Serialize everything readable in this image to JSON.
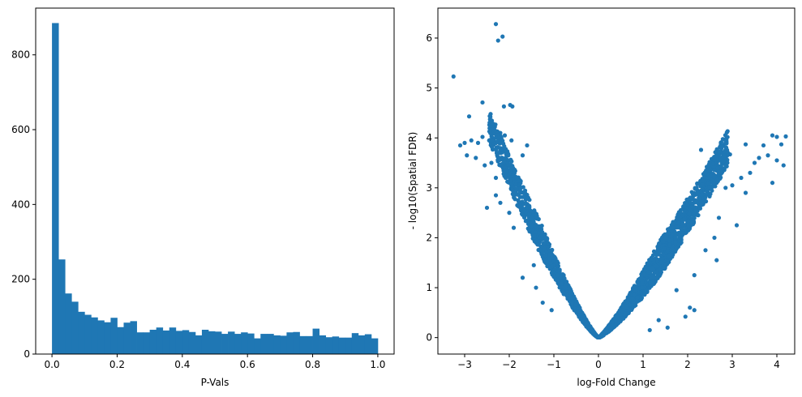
{
  "chart_data": [
    {
      "type": "bar",
      "subtype": "histogram",
      "xlabel": "P-Vals",
      "ylabel": "",
      "xlim": [
        -0.05,
        1.05
      ],
      "ylim": [
        0,
        925
      ],
      "xticks": [
        0.0,
        0.2,
        0.4,
        0.6,
        0.8,
        1.0
      ],
      "xtick_labels": [
        "0.0",
        "0.2",
        "0.4",
        "0.6",
        "0.8",
        "1.0"
      ],
      "yticks": [
        0,
        200,
        400,
        600,
        800
      ],
      "ytick_labels": [
        "0",
        "200",
        "400",
        "600",
        "800"
      ],
      "bin_start": 0.0,
      "bin_width": 0.02,
      "values": [
        885,
        253,
        162,
        140,
        113,
        105,
        98,
        90,
        85,
        97,
        72,
        84,
        88,
        58,
        58,
        65,
        71,
        63,
        71,
        62,
        64,
        59,
        50,
        65,
        61,
        60,
        54,
        60,
        54,
        58,
        55,
        42,
        54,
        54,
        50,
        49,
        58,
        59,
        48,
        48,
        68,
        50,
        45,
        47,
        44,
        44,
        56,
        50,
        53,
        42
      ],
      "color": "#1f77b4"
    },
    {
      "type": "scatter",
      "xlabel": "log-Fold Change",
      "ylabel": "- log10(Spatial FDR)",
      "xlim": [
        -3.6,
        4.4
      ],
      "ylim": [
        -0.33,
        6.6
      ],
      "xticks": [
        -3,
        -2,
        -1,
        0,
        1,
        2,
        3,
        4
      ],
      "xtick_labels": [
        "−3",
        "−2",
        "−1",
        "0",
        "1",
        "2",
        "3",
        "4"
      ],
      "yticks": [
        0,
        1,
        2,
        3,
        4,
        5,
        6
      ],
      "ytick_labels": [
        "0",
        "1",
        "2",
        "3",
        "4",
        "5",
        "6"
      ],
      "color": "#1f77b4",
      "points": [
        [
          -3.25,
          5.23
        ],
        [
          -2.3,
          6.28
        ],
        [
          -2.25,
          5.95
        ],
        [
          -2.15,
          6.03
        ],
        [
          -2.9,
          4.43
        ],
        [
          -2.6,
          4.71
        ],
        [
          -2.12,
          4.63
        ],
        [
          -1.98,
          4.66
        ],
        [
          -1.93,
          4.63
        ],
        [
          -3.1,
          3.85
        ],
        [
          -3.0,
          3.9
        ],
        [
          -2.85,
          3.95
        ],
        [
          -2.7,
          3.9
        ],
        [
          -2.6,
          4.02
        ],
        [
          -2.45,
          3.95
        ],
        [
          -2.2,
          4.1
        ],
        [
          -2.1,
          4.05
        ],
        [
          -1.95,
          3.95
        ],
        [
          -1.7,
          3.65
        ],
        [
          -1.6,
          3.85
        ],
        [
          -2.95,
          3.65
        ],
        [
          -2.75,
          3.6
        ],
        [
          -2.55,
          3.45
        ],
        [
          -2.4,
          3.5
        ],
        [
          -2.3,
          3.2
        ],
        [
          -2.5,
          2.6
        ],
        [
          -2.3,
          2.85
        ],
        [
          -2.2,
          2.7
        ],
        [
          -2.0,
          2.5
        ],
        [
          -1.9,
          2.2
        ],
        [
          -1.8,
          2.75
        ],
        [
          -1.6,
          2.5
        ],
        [
          -1.5,
          2.2
        ],
        [
          -1.7,
          1.2
        ],
        [
          -1.45,
          1.45
        ],
        [
          -1.4,
          1.0
        ],
        [
          -1.25,
          0.7
        ],
        [
          -1.05,
          0.55
        ],
        [
          3.9,
          4.05
        ],
        [
          4.0,
          4.02
        ],
        [
          4.2,
          4.03
        ],
        [
          4.1,
          3.87
        ],
        [
          3.7,
          3.85
        ],
        [
          3.3,
          3.87
        ],
        [
          2.95,
          3.67
        ],
        [
          2.65,
          3.65
        ],
        [
          2.3,
          3.76
        ],
        [
          3.6,
          3.6
        ],
        [
          3.8,
          3.65
        ],
        [
          4.0,
          3.55
        ],
        [
          3.5,
          3.5
        ],
        [
          3.4,
          3.3
        ],
        [
          3.9,
          3.1
        ],
        [
          4.15,
          3.45
        ],
        [
          3.2,
          3.2
        ],
        [
          3.0,
          3.05
        ],
        [
          2.85,
          3.0
        ],
        [
          3.3,
          2.9
        ],
        [
          3.1,
          2.25
        ],
        [
          2.7,
          2.4
        ],
        [
          2.6,
          2.0
        ],
        [
          2.65,
          1.55
        ],
        [
          2.4,
          1.75
        ],
        [
          2.15,
          1.25
        ],
        [
          1.75,
          0.95
        ],
        [
          2.05,
          0.6
        ],
        [
          1.95,
          0.42
        ],
        [
          2.15,
          0.55
        ],
        [
          1.55,
          0.2
        ],
        [
          1.35,
          0.35
        ],
        [
          1.15,
          0.15
        ]
      ],
      "v_left": {
        "x_min": -2.45,
        "x_max": -0.02,
        "slope": 1.28,
        "spread": 0.65,
        "count": 1250,
        "seed": 11
      },
      "v_right": {
        "x_min": 0.02,
        "x_max": 2.9,
        "slope": 1.02,
        "spread": 0.7,
        "count": 1900,
        "seed": 29
      }
    }
  ]
}
